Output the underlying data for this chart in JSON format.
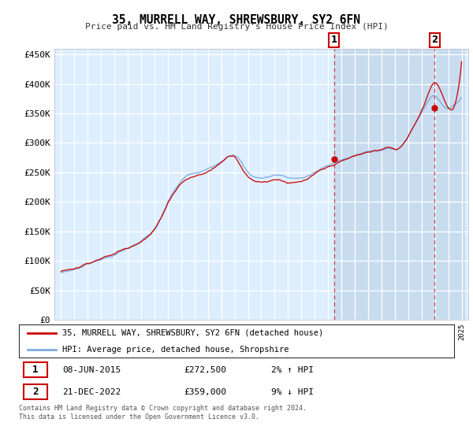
{
  "title": "35, MURRELL WAY, SHREWSBURY, SY2 6FN",
  "subtitle": "Price paid vs. HM Land Registry's House Price Index (HPI)",
  "ylim": [
    0,
    460000
  ],
  "yticks": [
    0,
    50000,
    100000,
    150000,
    200000,
    250000,
    300000,
    350000,
    400000,
    450000
  ],
  "ytick_labels": [
    "£0",
    "£50K",
    "£100K",
    "£150K",
    "£200K",
    "£250K",
    "£300K",
    "£350K",
    "£400K",
    "£450K"
  ],
  "red_line_color": "#cc0000",
  "blue_line_color": "#7aaadd",
  "background_color": "#ffffff",
  "plot_bg_color": "#ddeeff",
  "grid_color": "#ffffff",
  "shade_color": "#c8dcf0",
  "sale1_year": 2015.44,
  "sale1_price": 272500,
  "sale2_year": 2022.97,
  "sale2_price": 359000,
  "sale1_date_label": "08-JUN-2015",
  "sale2_date_label": "21-DEC-2022",
  "annot1_pct": "2% ↑ HPI",
  "annot2_pct": "9% ↓ HPI",
  "legend_line1": "35, MURRELL WAY, SHREWSBURY, SY2 6FN (detached house)",
  "legend_line2": "HPI: Average price, detached house, Shropshire",
  "footer_line1": "Contains HM Land Registry data © Crown copyright and database right 2024.",
  "footer_line2": "This data is licensed under the Open Government Licence v3.0.",
  "curve_years": [
    1995.0,
    1995.5,
    1996.0,
    1996.5,
    1997.0,
    1997.5,
    1998.0,
    1998.5,
    1999.0,
    1999.5,
    2000.0,
    2000.5,
    2001.0,
    2001.5,
    2002.0,
    2002.5,
    2003.0,
    2003.5,
    2004.0,
    2004.5,
    2005.0,
    2005.5,
    2006.0,
    2006.5,
    2007.0,
    2007.5,
    2008.0,
    2008.5,
    2009.0,
    2009.5,
    2010.0,
    2010.5,
    2011.0,
    2011.5,
    2012.0,
    2012.5,
    2013.0,
    2013.5,
    2014.0,
    2014.5,
    2015.0,
    2015.5,
    2016.0,
    2016.5,
    2017.0,
    2017.5,
    2018.0,
    2018.5,
    2019.0,
    2019.5,
    2020.0,
    2020.5,
    2021.0,
    2021.5,
    2022.0,
    2022.5,
    2023.0,
    2023.5,
    2024.0,
    2024.5
  ],
  "hpi_values": [
    80000,
    83000,
    86000,
    90000,
    96000,
    100000,
    105000,
    108000,
    112000,
    118000,
    123000,
    130000,
    137000,
    145000,
    155000,
    175000,
    200000,
    220000,
    235000,
    245000,
    248000,
    250000,
    255000,
    262000,
    270000,
    280000,
    282000,
    270000,
    252000,
    245000,
    243000,
    245000,
    248000,
    248000,
    245000,
    244000,
    245000,
    248000,
    254000,
    260000,
    265000,
    270000,
    275000,
    278000,
    282000,
    285000,
    288000,
    290000,
    292000,
    295000,
    292000,
    298000,
    315000,
    335000,
    355000,
    375000,
    385000,
    372000,
    365000,
    370000
  ],
  "red_values": [
    82000,
    85000,
    88000,
    92000,
    98000,
    103000,
    108000,
    111000,
    115000,
    121000,
    126000,
    133000,
    140000,
    148000,
    160000,
    180000,
    205000,
    225000,
    240000,
    248000,
    252000,
    255000,
    260000,
    267000,
    276000,
    286000,
    288000,
    272000,
    255000,
    248000,
    247000,
    249000,
    252000,
    252000,
    248000,
    247000,
    248000,
    252000,
    258000,
    264000,
    268000,
    274000,
    278000,
    282000,
    286000,
    289000,
    292000,
    295000,
    297000,
    300000,
    296000,
    302000,
    320000,
    342000,
    365000,
    395000,
    415000,
    398000,
    372000,
    376000
  ]
}
